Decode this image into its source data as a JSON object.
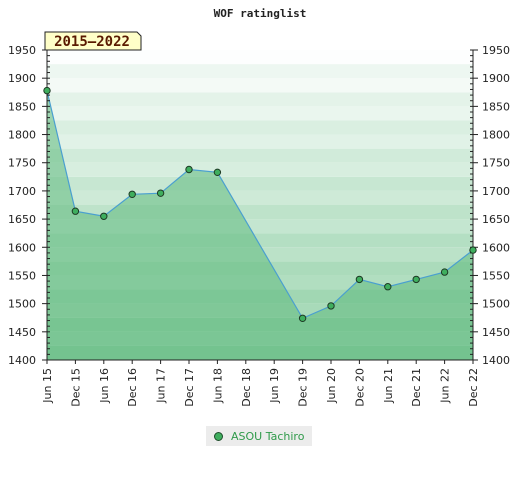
{
  "chart_data": {
    "type": "area",
    "title": "WOF ratinglist",
    "period_badge": "2015—2022",
    "xlabel": "",
    "ylabel": "",
    "ylim": [
      1400,
      1950
    ],
    "y_ticks": [
      1400,
      1450,
      1500,
      1550,
      1600,
      1650,
      1700,
      1750,
      1800,
      1850,
      1900,
      1950
    ],
    "categories": [
      "Jun 15",
      "Dec 15",
      "Jun 16",
      "Dec 16",
      "Jun 17",
      "Dec 17",
      "Jun 18",
      "Dec 18",
      "Jun 19",
      "Dec 19",
      "Jun 20",
      "Dec 20",
      "Jun 21",
      "Dec 21",
      "Jun 22",
      "Dec 22"
    ],
    "series": [
      {
        "name": "ASOU Tachiro",
        "points": [
          {
            "x": 0.0,
            "y": 1878
          },
          {
            "x": 1.0,
            "y": 1664
          },
          {
            "x": 2.0,
            "y": 1655
          },
          {
            "x": 3.0,
            "y": 1694
          },
          {
            "x": 4.0,
            "y": 1696
          },
          {
            "x": 5.0,
            "y": 1738
          },
          {
            "x": 6.0,
            "y": 1733
          },
          {
            "x": 9.0,
            "y": 1474
          },
          {
            "x": 10.0,
            "y": 1496
          },
          {
            "x": 11.0,
            "y": 1543
          },
          {
            "x": 12.0,
            "y": 1530
          },
          {
            "x": 13.0,
            "y": 1543
          },
          {
            "x": 14.0,
            "y": 1556
          },
          {
            "x": 15.0,
            "y": 1595
          }
        ]
      }
    ],
    "grid": true,
    "legend_position": "bottom-center",
    "colors": {
      "line": "#4a9fd0",
      "marker": "#3fae5e",
      "fill": "#5fba7d",
      "badge_bg": "#ffffc8",
      "legend_text": "#2f9a4a"
    }
  }
}
